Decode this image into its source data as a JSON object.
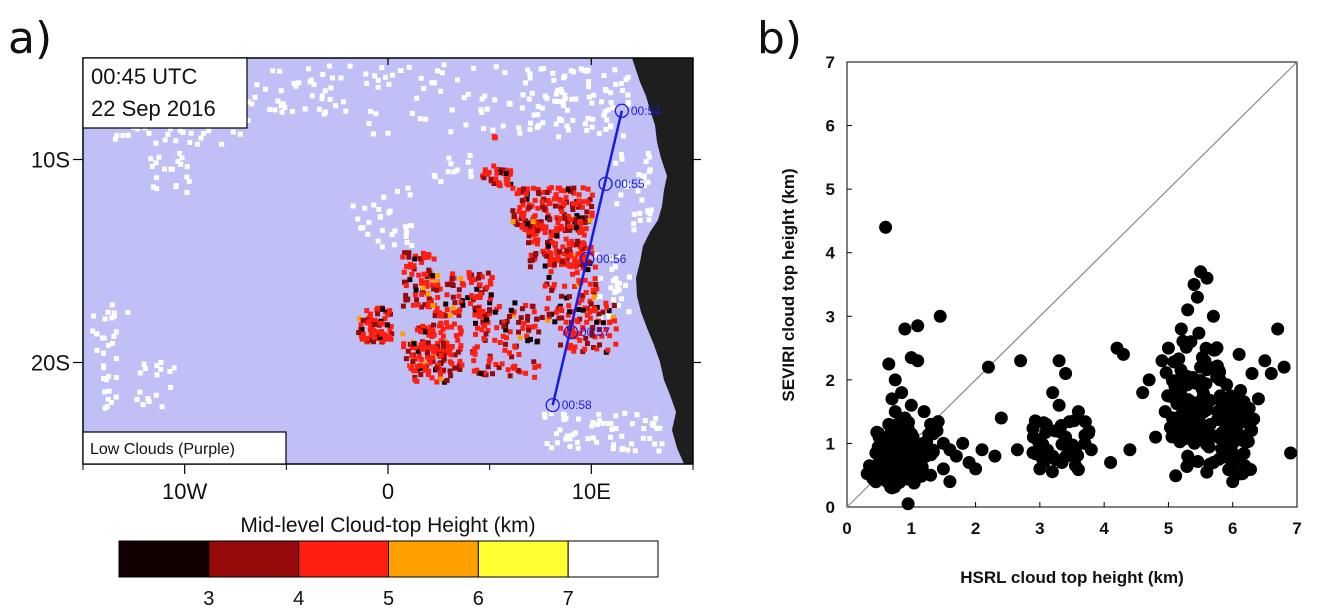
{
  "panel_a": {
    "label": "a)",
    "time_line1": "00:45 UTC",
    "time_line2": "22 Sep 2016",
    "legend_note": "Low Clouds (Purple)",
    "lon_ticks": [
      {
        "label": "10W",
        "value": -10
      },
      {
        "label": "0",
        "value": 0
      },
      {
        "label": "10E",
        "value": 10
      }
    ],
    "lat_ticks": [
      {
        "label": "10S",
        "value": -10
      },
      {
        "label": "20S",
        "value": -20
      }
    ],
    "lon_range": [
      -15,
      15
    ],
    "lat_range": [
      -25,
      -5
    ],
    "colors": {
      "low_clouds": "#c0c0f7",
      "land": "#1e1e1e",
      "track": "#1a1adc"
    },
    "track": [
      {
        "label": "00:54",
        "lon": 11.5,
        "lat": -7.6
      },
      {
        "label": "00:55",
        "lon": 10.7,
        "lat": -11.2
      },
      {
        "label": "00:56",
        "lon": 9.8,
        "lat": -14.9
      },
      {
        "label": "00:57",
        "lon": 9.0,
        "lat": -18.5
      },
      {
        "label": "00:58",
        "lon": 8.1,
        "lat": -22.1
      }
    ],
    "colorbar": {
      "title": "Mid-level Cloud-top Height (km)",
      "colors": [
        "#120000",
        "#960a0a",
        "#ff1e0f",
        "#ffa000",
        "#ffff32",
        "#ffffff"
      ],
      "tick_labels": [
        "3",
        "4",
        "5",
        "6",
        "7"
      ]
    }
  },
  "panel_b": {
    "label": "b)",
    "chart_data": {
      "type": "scatter",
      "xlabel": "HSRL cloud top height (km)",
      "ylabel": "SEVIRI cloud top height (km)",
      "xlim": [
        0,
        7
      ],
      "ylim": [
        0,
        7
      ],
      "xticks": [
        "0",
        "1",
        "2",
        "3",
        "4",
        "5",
        "6",
        "7"
      ],
      "yticks": [
        "0",
        "1",
        "2",
        "3",
        "4",
        "5",
        "6",
        "7"
      ],
      "reference_line": "1:1",
      "points": [
        [
          0.6,
          4.4
        ],
        [
          1.45,
          3.0
        ],
        [
          1.1,
          2.85
        ],
        [
          0.9,
          2.8
        ],
        [
          0.65,
          2.25
        ],
        [
          1.0,
          2.35
        ],
        [
          1.1,
          2.3
        ],
        [
          0.75,
          2.0
        ],
        [
          0.4,
          0.45
        ],
        [
          0.5,
          0.5
        ],
        [
          0.35,
          0.65
        ],
        [
          0.55,
          0.7
        ],
        [
          0.45,
          0.85
        ],
        [
          0.6,
          0.9
        ],
        [
          0.7,
          1.0
        ],
        [
          0.5,
          1.1
        ],
        [
          0.8,
          1.2
        ],
        [
          0.65,
          1.3
        ],
        [
          0.9,
          1.4
        ],
        [
          0.75,
          1.5
        ],
        [
          0.7,
          1.7
        ],
        [
          0.85,
          1.8
        ],
        [
          1.0,
          1.6
        ],
        [
          1.2,
          1.5
        ],
        [
          1.3,
          1.3
        ],
        [
          1.4,
          1.2
        ],
        [
          1.5,
          1.0
        ],
        [
          1.6,
          0.9
        ],
        [
          1.7,
          0.8
        ],
        [
          1.8,
          1.0
        ],
        [
          1.9,
          0.7
        ],
        [
          2.1,
          0.9
        ],
        [
          1.0,
          0.6
        ],
        [
          1.1,
          0.8
        ],
        [
          1.2,
          1.0
        ],
        [
          0.9,
          0.7
        ],
        [
          0.8,
          0.5
        ],
        [
          0.95,
          0.05
        ],
        [
          0.7,
          0.3
        ],
        [
          1.3,
          0.5
        ],
        [
          1.5,
          0.6
        ],
        [
          1.6,
          0.4
        ],
        [
          2.0,
          0.6
        ],
        [
          2.3,
          0.8
        ],
        [
          2.4,
          1.4
        ],
        [
          2.65,
          0.9
        ],
        [
          2.2,
          2.2
        ],
        [
          2.7,
          2.3
        ],
        [
          3.0,
          1.0
        ],
        [
          3.1,
          1.3
        ],
        [
          3.2,
          0.8
        ],
        [
          3.3,
          1.6
        ],
        [
          3.4,
          1.1
        ],
        [
          3.5,
          0.9
        ],
        [
          3.7,
          1.0
        ],
        [
          3.6,
          1.5
        ],
        [
          3.3,
          2.3
        ],
        [
          3.4,
          2.1
        ],
        [
          3.0,
          0.6
        ],
        [
          2.9,
          1.1
        ],
        [
          3.8,
          0.9
        ],
        [
          3.2,
          1.8
        ],
        [
          4.1,
          0.7
        ],
        [
          4.2,
          2.5
        ],
        [
          4.3,
          2.4
        ],
        [
          4.4,
          0.9
        ],
        [
          4.6,
          1.8
        ],
        [
          4.7,
          2.0
        ],
        [
          4.8,
          1.1
        ],
        [
          4.9,
          2.3
        ],
        [
          5.0,
          2.5
        ],
        [
          5.1,
          1.9
        ],
        [
          5.2,
          2.8
        ],
        [
          5.3,
          3.1
        ],
        [
          5.4,
          3.5
        ],
        [
          5.5,
          3.7
        ],
        [
          5.6,
          3.6
        ],
        [
          5.45,
          3.3
        ],
        [
          5.35,
          2.6
        ],
        [
          5.5,
          2.2
        ],
        [
          5.7,
          3.0
        ],
        [
          5.8,
          2.0
        ],
        [
          5.9,
          1.2
        ],
        [
          6.0,
          1.0
        ],
        [
          6.1,
          0.8
        ],
        [
          6.2,
          1.5
        ],
        [
          6.3,
          2.1
        ],
        [
          6.1,
          2.4
        ],
        [
          5.6,
          1.0
        ],
        [
          5.7,
          0.7
        ],
        [
          6.4,
          1.7
        ],
        [
          6.5,
          2.3
        ],
        [
          6.6,
          2.1
        ],
        [
          6.7,
          2.8
        ],
        [
          6.8,
          2.2
        ],
        [
          6.9,
          0.85
        ],
        [
          6.0,
          0.4
        ],
        [
          5.2,
          1.2
        ],
        [
          5.3,
          0.8
        ],
        [
          5.8,
          1.5
        ],
        [
          4.95,
          1.5
        ],
        [
          6.2,
          0.6
        ]
      ]
    }
  }
}
